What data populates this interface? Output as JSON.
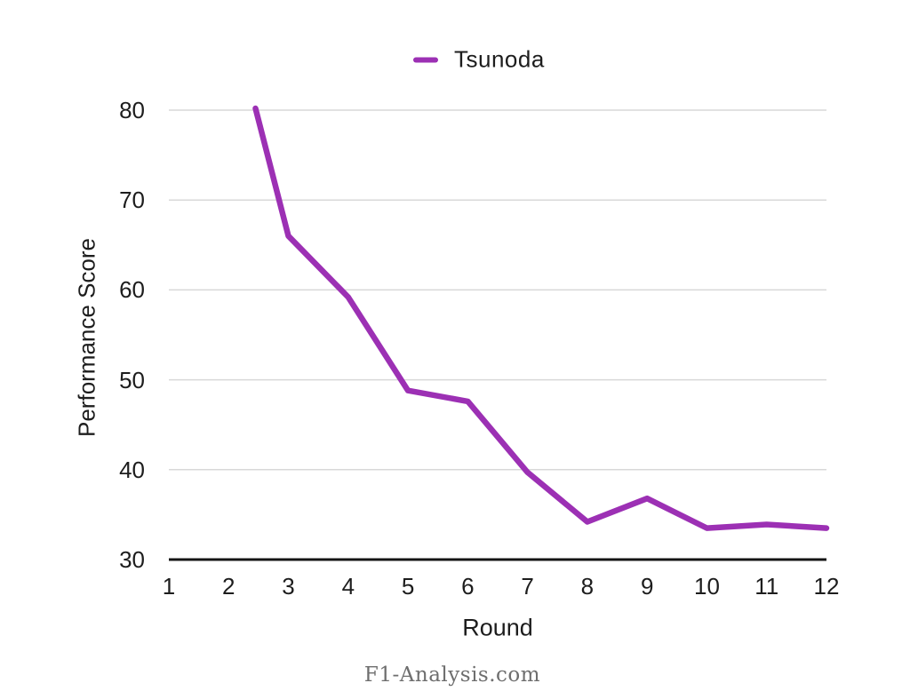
{
  "chart_data": {
    "type": "line",
    "title": "",
    "xlabel": "Round",
    "ylabel": "Performance Score",
    "source": "F1-Analysis.com",
    "legend_position": "top-center",
    "grid": "horizontal",
    "grid_color": "#d8d8d8",
    "axis_color": "#141414",
    "text_color": "#1d1d1d",
    "source_color": "#6e6e6e",
    "x_ticks": [
      1,
      2,
      3,
      4,
      5,
      6,
      7,
      8,
      9,
      10,
      11,
      12
    ],
    "y_ticks": [
      30,
      40,
      50,
      60,
      70,
      80
    ],
    "xlim": [
      1,
      12
    ],
    "ylim": [
      30,
      80
    ],
    "series": [
      {
        "name": "Tsunoda",
        "color": "#9C30B4",
        "points": [
          [
            2.45,
            80.2
          ],
          [
            3,
            66.0
          ],
          [
            4,
            59.2
          ],
          [
            5,
            48.8
          ],
          [
            6,
            47.6
          ],
          [
            7,
            39.7
          ],
          [
            8,
            34.2
          ],
          [
            9,
            36.8
          ],
          [
            10,
            33.5
          ],
          [
            11,
            33.9
          ],
          [
            12,
            33.5
          ]
        ]
      }
    ]
  }
}
